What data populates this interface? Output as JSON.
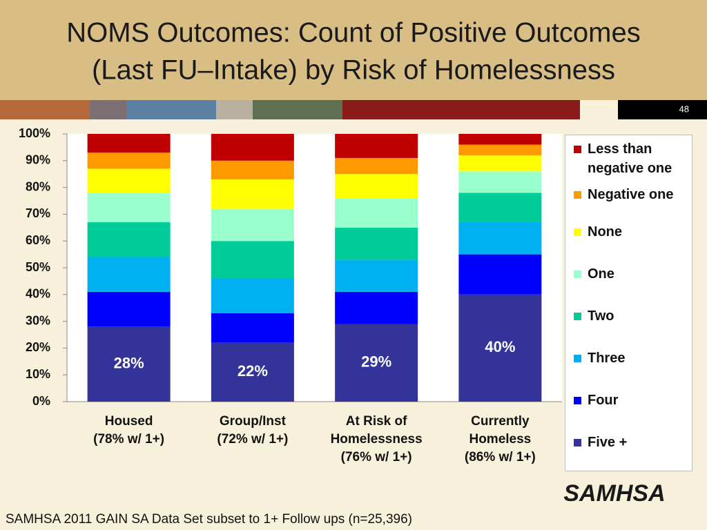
{
  "slide": {
    "title_lines": [
      "NOMS Outcomes: Count of Positive Outcomes",
      "(Last FU–Intake) by Risk of Homelessness"
    ],
    "page_number": "48",
    "footer": "SAMHSA 2011 GAIN SA Data Set subset to 1+ Follow ups (n=25,396)",
    "logo": "SAMHSA"
  },
  "chart_data": {
    "type": "stacked_bar",
    "categories": [
      [
        "Housed",
        "(78% w/ 1+)"
      ],
      [
        "Group/Inst",
        "(72% w/ 1+)"
      ],
      [
        "At Risk of",
        "Homelessness",
        "(76% w/ 1+)"
      ],
      [
        "Currently",
        "Homeless",
        "(86% w/ 1+)"
      ]
    ],
    "series": [
      {
        "name": "Less than negative one",
        "color": "#c00000",
        "values": [
          7,
          10,
          9,
          4
        ]
      },
      {
        "name": "Negative one",
        "color": "#ff9900",
        "values": [
          6,
          7,
          6,
          4
        ]
      },
      {
        "name": "None",
        "color": "#ffff00",
        "values": [
          9,
          11,
          9,
          6
        ]
      },
      {
        "name": "One",
        "color": "#99ffcc",
        "values": [
          11,
          12,
          11,
          8
        ]
      },
      {
        "name": "Two",
        "color": "#00cc99",
        "values": [
          13,
          14,
          12,
          11
        ]
      },
      {
        "name": "Three",
        "color": "#00b0f0",
        "values": [
          13,
          13,
          12,
          12
        ]
      },
      {
        "name": "Four",
        "color": "#0000ff",
        "values": [
          13,
          11,
          12,
          15
        ]
      },
      {
        "name": "Five +",
        "color": "#333399",
        "values": [
          28,
          22,
          29,
          40
        ],
        "value_labels": [
          "28%",
          "22%",
          "29%",
          "40%"
        ]
      }
    ],
    "ylim": [
      0,
      100
    ],
    "yticks": [
      {
        "value": 0,
        "label": "0%"
      },
      {
        "value": 10,
        "label": "10%"
      },
      {
        "value": 20,
        "label": "20%"
      },
      {
        "value": 30,
        "label": "30%"
      },
      {
        "value": 40,
        "label": "40%"
      },
      {
        "value": 50,
        "label": "50%"
      },
      {
        "value": 60,
        "label": "60%"
      },
      {
        "value": 70,
        "label": "70%"
      },
      {
        "value": 80,
        "label": "80%"
      },
      {
        "value": 90,
        "label": "90%"
      },
      {
        "value": 100,
        "label": "100%"
      }
    ],
    "grid": false,
    "legend": "right"
  }
}
